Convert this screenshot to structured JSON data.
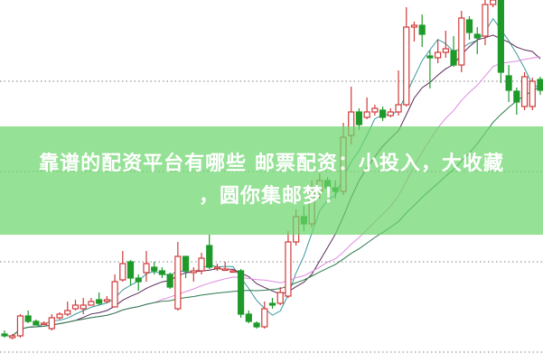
{
  "banner": {
    "line1": "靠谱的配资平台有哪些 邮票配资：小投入，大收藏",
    "line2": "，圆你集邮梦！"
  },
  "colors": {
    "up": "#d23a3a",
    "down": "#1f9a2a",
    "ma5": "#3a9aa0",
    "ma10": "#5a2a5a",
    "ma20": "#e08ae0",
    "ma30": "#2a7a4a",
    "grid": "#999999",
    "banner": "#6cd66c"
  },
  "chart_data": {
    "type": "candlestick",
    "grid": true,
    "value_scale": "relative price level 0-100 (no axis printed)",
    "moving_averages": [
      5,
      10,
      20,
      30
    ],
    "candles": [
      [
        7.5,
        7,
        8.5,
        6.5
      ],
      [
        6.5,
        7,
        7.5,
        6
      ],
      [
        7,
        12.5,
        13,
        6.5
      ],
      [
        12.5,
        11,
        14,
        10.5
      ],
      [
        11,
        10,
        11.5,
        10
      ],
      [
        10.5,
        10.5,
        11,
        10
      ],
      [
        9,
        12,
        13,
        8.5
      ],
      [
        12,
        13,
        13.5,
        11.5
      ],
      [
        13,
        14,
        16.5,
        12.5
      ],
      [
        14.5,
        15.5,
        17,
        14
      ],
      [
        14.5,
        15.5,
        17.5,
        13
      ],
      [
        15.5,
        16.5,
        17.5,
        15.5
      ],
      [
        17,
        16,
        19,
        15.5
      ],
      [
        16.5,
        17,
        18,
        16
      ],
      [
        15,
        22,
        24,
        15
      ],
      [
        22.5,
        27,
        30.5,
        22
      ],
      [
        27.5,
        23,
        28,
        21
      ],
      [
        23,
        22,
        24,
        19.5
      ],
      [
        24.5,
        27,
        30.5,
        22
      ],
      [
        26,
        25,
        27.5,
        24
      ],
      [
        25,
        24,
        26,
        23
      ],
      [
        24,
        20.5,
        24.5,
        20
      ],
      [
        14.5,
        29,
        33,
        14
      ],
      [
        29,
        25,
        29,
        23
      ],
      [
        24.5,
        25,
        26,
        22
      ],
      [
        25,
        28.5,
        30,
        24
      ],
      [
        32,
        26,
        35,
        25.5
      ],
      [
        26,
        26,
        27,
        25
      ],
      [
        25.5,
        25.5,
        27.5,
        25
      ],
      [
        25,
        25,
        25.5,
        24.5
      ],
      [
        25,
        13,
        25.5,
        12
      ],
      [
        13,
        11,
        14,
        10.5
      ],
      [
        10.5,
        9.5,
        11,
        9
      ],
      [
        9.5,
        14.5,
        16.5,
        9
      ],
      [
        16,
        15.5,
        17.5,
        14.5
      ],
      [
        16,
        19,
        20.5,
        15.5
      ],
      [
        18,
        33,
        36,
        17.5
      ],
      [
        33,
        40,
        42,
        32
      ],
      [
        40,
        38,
        43,
        36
      ],
      [
        38,
        47,
        50,
        37
      ],
      [
        47,
        50,
        52,
        45
      ],
      [
        50,
        48,
        51,
        46
      ],
      [
        48,
        47,
        50,
        45
      ],
      [
        47,
        62,
        66,
        46
      ],
      [
        62.5,
        69,
        76,
        60
      ],
      [
        69,
        65.5,
        70,
        64
      ],
      [
        67.5,
        69,
        73,
        67
      ],
      [
        69,
        70,
        71,
        68
      ],
      [
        69.5,
        67.5,
        70.5,
        66.5
      ],
      [
        68,
        69,
        70,
        67.5
      ],
      [
        69,
        71,
        80.5,
        68
      ],
      [
        71,
        92.5,
        98,
        70.5
      ],
      [
        92.5,
        93,
        94,
        88.5
      ],
      [
        93,
        90.5,
        96,
        87
      ],
      [
        84.5,
        84,
        86,
        75.5
      ],
      [
        84,
        85.5,
        89,
        82.5
      ],
      [
        85.5,
        86.5,
        91.5,
        84
      ],
      [
        86,
        82,
        90,
        81.5
      ],
      [
        82,
        95,
        97,
        80
      ],
      [
        94.5,
        91,
        95.5,
        89
      ],
      [
        90.5,
        89.5,
        92.5,
        85
      ],
      [
        90,
        98.75,
        100,
        87.5
      ],
      [
        98.75,
        100,
        100,
        98
      ],
      [
        100,
        80,
        100,
        77
      ],
      [
        79,
        75,
        82,
        71.75
      ],
      [
        74.75,
        71.75,
        75.75,
        68.25
      ],
      [
        70.5,
        78.75,
        80,
        69.5
      ],
      [
        70.5,
        77.5,
        78.5,
        69.5
      ],
      [
        78,
        75,
        78.75,
        73.75
      ]
    ]
  }
}
